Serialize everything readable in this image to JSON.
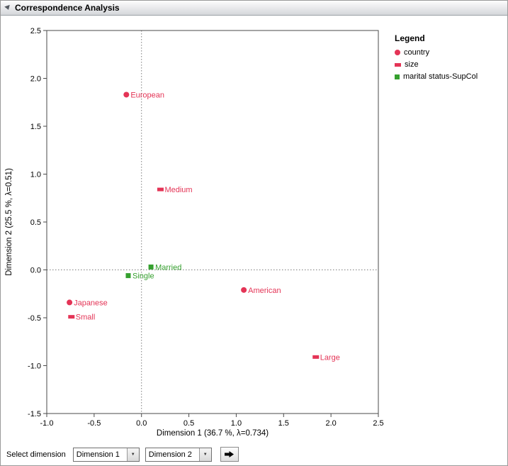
{
  "panel": {
    "title": "Correspondence Analysis"
  },
  "legend": {
    "title": "Legend",
    "items": [
      {
        "label": "country",
        "marker": "circle",
        "color": "#e43456"
      },
      {
        "label": "size",
        "marker": "rect",
        "color": "#e43456"
      },
      {
        "label": "marital status-SupCol",
        "marker": "square",
        "color": "#35a02e"
      }
    ]
  },
  "controls": {
    "label": "Select dimension",
    "dimension1": "Dimension 1",
    "dimension2": "Dimension 2",
    "go_icon": "right-arrow"
  },
  "chart_data": {
    "type": "scatter",
    "xlabel": "Dimension 1  (36.7 %, λ=0.734)",
    "ylabel": "Dimension 2  (25.5 %, λ=0.51)",
    "xlim": [
      -1.0,
      2.5
    ],
    "ylim": [
      -1.5,
      2.5
    ],
    "xticks": [
      -1.0,
      -0.5,
      0.0,
      0.5,
      1.0,
      1.5,
      2.0,
      2.5
    ],
    "yticks": [
      -1.5,
      -1.0,
      -0.5,
      0.0,
      0.5,
      1.0,
      1.5,
      2.0,
      2.5
    ],
    "ref_x": 0.0,
    "ref_y": 0.0,
    "grid": false,
    "legend_position": "top-right",
    "series": [
      {
        "name": "country",
        "marker": "circle",
        "color": "#e43456",
        "points": [
          {
            "label": "European",
            "x": -0.16,
            "y": 1.83
          },
          {
            "label": "American",
            "x": 1.08,
            "y": -0.21
          },
          {
            "label": "Japanese",
            "x": -0.76,
            "y": -0.34
          }
        ]
      },
      {
        "name": "size",
        "marker": "rect",
        "color": "#e43456",
        "points": [
          {
            "label": "Medium",
            "x": 0.2,
            "y": 0.84
          },
          {
            "label": "Small",
            "x": -0.74,
            "y": -0.49
          },
          {
            "label": "Large",
            "x": 1.84,
            "y": -0.91
          }
        ]
      },
      {
        "name": "marital status-SupCol",
        "marker": "square",
        "color": "#35a02e",
        "points": [
          {
            "label": "Married",
            "x": 0.1,
            "y": 0.03
          },
          {
            "label": "Single",
            "x": -0.14,
            "y": -0.06
          }
        ]
      }
    ]
  }
}
